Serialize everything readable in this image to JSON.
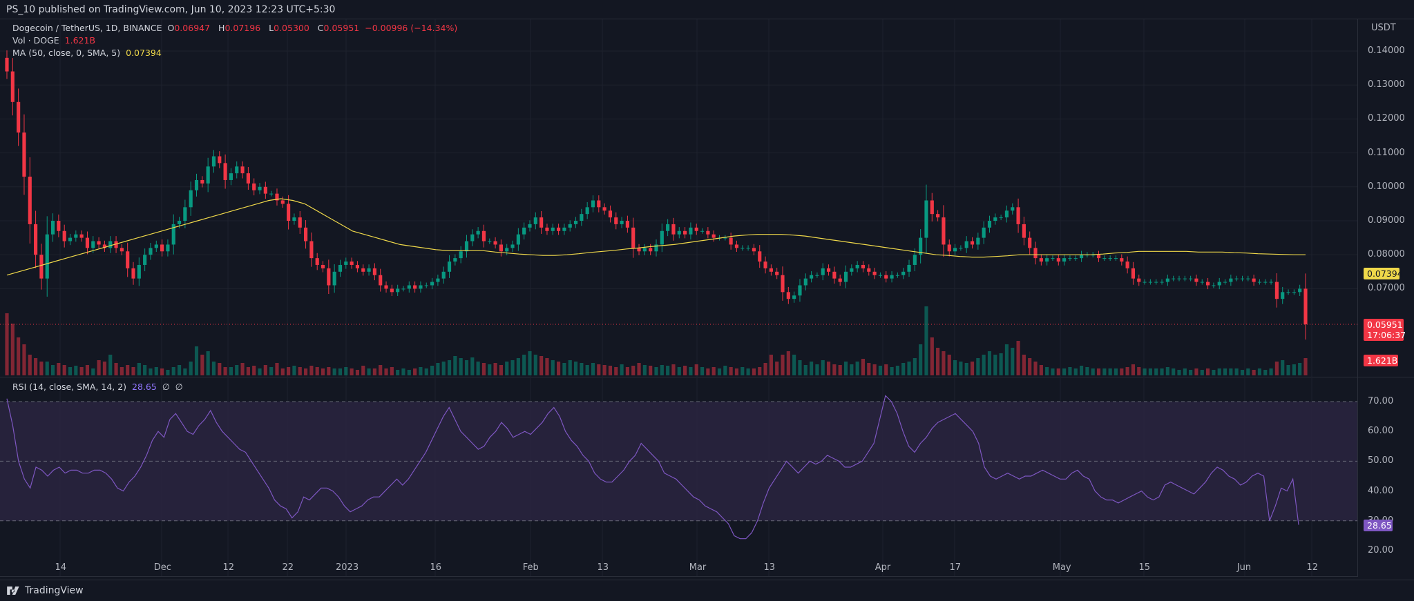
{
  "header": {
    "published": "PS_10 published on TradingView.com, Jun 10, 2023 12:23 UTC+5:30"
  },
  "footer": {
    "brand": "TradingView"
  },
  "main_legend": {
    "symbol": "Dogecoin / TetherUS, 1D, BINANCE",
    "o_label": "O",
    "o_value": "0.06947",
    "h_label": "H",
    "h_value": "0.07196",
    "l_label": "L",
    "l_value": "0.05300",
    "c_label": "C",
    "c_value": "0.05951",
    "change": "−0.00996 (−14.34%)",
    "vol_label": "Vol · DOGE",
    "vol_value": "1.621B",
    "ma_label": "MA (50, close, 0, SMA, 5)",
    "ma_value": "0.07394"
  },
  "rsi_legend": {
    "label": "RSI (14, close, SMA, 14, 2)",
    "value": "28.65",
    "extra1": "∅",
    "extra2": "∅"
  },
  "price_axis": {
    "currency": "USDT",
    "ticks": [
      "0.14000",
      "0.13000",
      "0.12000",
      "0.11000",
      "0.10000",
      "0.09000",
      "0.08000",
      "0.07000"
    ]
  },
  "rsi_axis": {
    "ticks": [
      "70.00",
      "60.00",
      "50.00",
      "40.00",
      "30.00",
      "20.00"
    ]
  },
  "tags": {
    "ma": "0.07394",
    "last_price": "0.05951",
    "countdown": "17:06:37",
    "volume": "1.621B",
    "rsi": "28.65"
  },
  "time_axis": {
    "labels": [
      "14",
      "Dec",
      "12",
      "22",
      "2023",
      "16",
      "Feb",
      "13",
      "Mar",
      "13",
      "Apr",
      "17",
      "May",
      "15",
      "Jun",
      "12"
    ]
  },
  "colors": {
    "background": "#131722",
    "up": "#089981",
    "down": "#f23645",
    "ma_line": "#f0d94a",
    "rsi_line": "#7e57c2",
    "rsi_band": "#2a2440",
    "grid": "#1e222d"
  },
  "chart_data": {
    "type": "candlestick",
    "symbol": "DOGE/USDT",
    "interval": "1D",
    "price_range": [
      0.056,
      0.142
    ],
    "rsi_range": [
      19,
      75
    ],
    "rsi_bands": {
      "upper": 70,
      "middle": 50,
      "lower": 30
    },
    "close": [
      0.134,
      0.125,
      0.116,
      0.103,
      0.089,
      0.08,
      0.073,
      0.086,
      0.09,
      0.087,
      0.084,
      0.085,
      0.086,
      0.085,
      0.082,
      0.084,
      0.083,
      0.082,
      0.084,
      0.082,
      0.081,
      0.076,
      0.073,
      0.077,
      0.08,
      0.082,
      0.083,
      0.081,
      0.083,
      0.089,
      0.09,
      0.094,
      0.099,
      0.102,
      0.101,
      0.106,
      0.109,
      0.107,
      0.102,
      0.104,
      0.106,
      0.104,
      0.101,
      0.099,
      0.1,
      0.098,
      0.098,
      0.096,
      0.095,
      0.09,
      0.091,
      0.088,
      0.084,
      0.079,
      0.077,
      0.076,
      0.071,
      0.075,
      0.077,
      0.078,
      0.077,
      0.076,
      0.075,
      0.076,
      0.074,
      0.071,
      0.07,
      0.069,
      0.07,
      0.07,
      0.071,
      0.07,
      0.071,
      0.071,
      0.072,
      0.073,
      0.075,
      0.078,
      0.079,
      0.081,
      0.084,
      0.086,
      0.087,
      0.084,
      0.084,
      0.083,
      0.081,
      0.082,
      0.083,
      0.086,
      0.088,
      0.089,
      0.091,
      0.088,
      0.087,
      0.088,
      0.087,
      0.088,
      0.089,
      0.09,
      0.092,
      0.094,
      0.096,
      0.094,
      0.093,
      0.091,
      0.089,
      0.09,
      0.088,
      0.082,
      0.081,
      0.082,
      0.081,
      0.083,
      0.087,
      0.089,
      0.086,
      0.087,
      0.086,
      0.088,
      0.087,
      0.087,
      0.086,
      0.085,
      0.085,
      0.085,
      0.083,
      0.082,
      0.082,
      0.082,
      0.081,
      0.078,
      0.076,
      0.075,
      0.074,
      0.069,
      0.067,
      0.068,
      0.071,
      0.073,
      0.074,
      0.074,
      0.076,
      0.075,
      0.073,
      0.072,
      0.075,
      0.076,
      0.077,
      0.076,
      0.075,
      0.074,
      0.074,
      0.073,
      0.074,
      0.074,
      0.075,
      0.077,
      0.08,
      0.085,
      0.096,
      0.092,
      0.091,
      0.083,
      0.081,
      0.082,
      0.082,
      0.084,
      0.083,
      0.085,
      0.088,
      0.09,
      0.091,
      0.091,
      0.093,
      0.094,
      0.089,
      0.085,
      0.082,
      0.079,
      0.078,
      0.079,
      0.079,
      0.078,
      0.079,
      0.079,
      0.079,
      0.08,
      0.08,
      0.08,
      0.079,
      0.079,
      0.079,
      0.079,
      0.078,
      0.076,
      0.073,
      0.072,
      0.072,
      0.072,
      0.072,
      0.072,
      0.073,
      0.073,
      0.073,
      0.073,
      0.073,
      0.072,
      0.072,
      0.071,
      0.071,
      0.072,
      0.072,
      0.073,
      0.073,
      0.073,
      0.073,
      0.072,
      0.072,
      0.072,
      0.072,
      0.067,
      0.069,
      0.069,
      0.069,
      0.07,
      0.0595
    ],
    "ma50": [
      0.074,
      0.075,
      0.076,
      0.077,
      0.078,
      0.079,
      0.08,
      0.081,
      0.082,
      0.083,
      0.084,
      0.085,
      0.086,
      0.087,
      0.088,
      0.089,
      0.09,
      0.091,
      0.092,
      0.093,
      0.094,
      0.095,
      0.096,
      0.0965,
      0.096,
      0.095,
      0.093,
      0.091,
      0.089,
      0.087,
      0.086,
      0.085,
      0.084,
      0.083,
      0.0825,
      0.082,
      0.0815,
      0.0812,
      0.0812,
      0.0812,
      0.0812,
      0.0808,
      0.0805,
      0.0802,
      0.08,
      0.0798,
      0.0798,
      0.08,
      0.0803,
      0.0807,
      0.081,
      0.0813,
      0.0817,
      0.082,
      0.0824,
      0.0827,
      0.083,
      0.0835,
      0.084,
      0.0845,
      0.085,
      0.0855,
      0.0858,
      0.086,
      0.086,
      0.086,
      0.0858,
      0.0855,
      0.085,
      0.0845,
      0.084,
      0.0835,
      0.083,
      0.0825,
      0.082,
      0.0815,
      0.081,
      0.0805,
      0.08,
      0.0798,
      0.0795,
      0.0793,
      0.0793,
      0.0795,
      0.0797,
      0.08,
      0.08,
      0.08,
      0.08,
      0.08,
      0.08,
      0.08,
      0.0802,
      0.0805,
      0.0807,
      0.081,
      0.081,
      0.081,
      0.081,
      0.081,
      0.0808,
      0.0808,
      0.0808,
      0.0806,
      0.0805,
      0.0803,
      0.0802,
      0.0801,
      0.08,
      0.08
    ],
    "volume_rel": [
      0.9,
      0.75,
      0.55,
      0.45,
      0.3,
      0.25,
      0.2,
      0.2,
      0.15,
      0.18,
      0.15,
      0.12,
      0.14,
      0.12,
      0.15,
      0.1,
      0.22,
      0.2,
      0.3,
      0.18,
      0.12,
      0.15,
      0.12,
      0.18,
      0.15,
      0.1,
      0.12,
      0.1,
      0.08,
      0.12,
      0.15,
      0.1,
      0.2,
      0.42,
      0.3,
      0.35,
      0.2,
      0.18,
      0.12,
      0.12,
      0.15,
      0.18,
      0.12,
      0.14,
      0.1,
      0.15,
      0.12,
      0.18,
      0.1,
      0.12,
      0.14,
      0.12,
      0.1,
      0.14,
      0.12,
      0.1,
      0.12,
      0.1,
      0.1,
      0.12,
      0.1,
      0.08,
      0.14,
      0.1,
      0.1,
      0.15,
      0.1,
      0.12,
      0.08,
      0.1,
      0.08,
      0.1,
      0.12,
      0.1,
      0.14,
      0.18,
      0.2,
      0.22,
      0.28,
      0.25,
      0.22,
      0.26,
      0.2,
      0.18,
      0.16,
      0.18,
      0.15,
      0.2,
      0.22,
      0.25,
      0.3,
      0.35,
      0.3,
      0.28,
      0.25,
      0.22,
      0.2,
      0.18,
      0.22,
      0.2,
      0.18,
      0.15,
      0.18,
      0.16,
      0.15,
      0.14,
      0.12,
      0.16,
      0.12,
      0.14,
      0.18,
      0.15,
      0.14,
      0.12,
      0.15,
      0.14,
      0.16,
      0.12,
      0.14,
      0.12,
      0.16,
      0.12,
      0.1,
      0.12,
      0.1,
      0.14,
      0.12,
      0.1,
      0.12,
      0.1,
      0.1,
      0.12,
      0.18,
      0.3,
      0.2,
      0.3,
      0.35,
      0.3,
      0.22,
      0.15,
      0.2,
      0.16,
      0.22,
      0.2,
      0.16,
      0.15,
      0.2,
      0.16,
      0.2,
      0.24,
      0.18,
      0.16,
      0.14,
      0.16,
      0.12,
      0.14,
      0.18,
      0.2,
      0.25,
      0.45,
      1.0,
      0.55,
      0.4,
      0.35,
      0.3,
      0.22,
      0.2,
      0.18,
      0.2,
      0.25,
      0.3,
      0.35,
      0.3,
      0.32,
      0.45,
      0.4,
      0.5,
      0.3,
      0.25,
      0.2,
      0.15,
      0.12,
      0.1,
      0.1,
      0.1,
      0.12,
      0.1,
      0.14,
      0.12,
      0.1,
      0.1,
      0.1,
      0.1,
      0.1,
      0.1,
      0.12,
      0.16,
      0.12,
      0.1,
      0.1,
      0.1,
      0.1,
      0.12,
      0.1,
      0.08,
      0.1,
      0.08,
      0.1,
      0.08,
      0.1,
      0.08,
      0.1,
      0.1,
      0.1,
      0.1,
      0.08,
      0.1,
      0.08,
      0.1,
      0.08,
      0.1,
      0.2,
      0.22,
      0.15,
      0.16,
      0.18,
      0.25
    ],
    "rsi": [
      71,
      62,
      50,
      44,
      41,
      48,
      47,
      45,
      47,
      48,
      46,
      47,
      47,
      46,
      46,
      47,
      47,
      46,
      44,
      41,
      40,
      43,
      45,
      48,
      52,
      57,
      60,
      58,
      64,
      66,
      63,
      60,
      59,
      62,
      64,
      67,
      63,
      60,
      58,
      56,
      54,
      53,
      50,
      47,
      44,
      41,
      37,
      35,
      34,
      31,
      33,
      38,
      37,
      39,
      41,
      41,
      40,
      38,
      35,
      33,
      34,
      35,
      37,
      38,
      38,
      40,
      42,
      44,
      42,
      44,
      47,
      50,
      53,
      57,
      61,
      65,
      68,
      64,
      60,
      58,
      56,
      54,
      55,
      58,
      60,
      63,
      61,
      58,
      59,
      60,
      59,
      61,
      63,
      66,
      68,
      65,
      60,
      57,
      55,
      52,
      50,
      46,
      44,
      43,
      43,
      45,
      47,
      50,
      52,
      56,
      54,
      52,
      50,
      46,
      45,
      44,
      42,
      40,
      38,
      37,
      35,
      34,
      33,
      31,
      29,
      25,
      24,
      24,
      26,
      30,
      36,
      41,
      44,
      47,
      50,
      48,
      46,
      48,
      50,
      49,
      50,
      52,
      51,
      50,
      48,
      48,
      49,
      50,
      53,
      56,
      64,
      72,
      70,
      66,
      60,
      55,
      53,
      56,
      58,
      61,
      63,
      64,
      65,
      66,
      64,
      62,
      60,
      56,
      48,
      45,
      44,
      45,
      46,
      45,
      44,
      45,
      45,
      46,
      47,
      46,
      45,
      44,
      44,
      46,
      47,
      45,
      44,
      40,
      38,
      37,
      37,
      36,
      37,
      38,
      39,
      40,
      38,
      37,
      38,
      42,
      43,
      42,
      41,
      40,
      39,
      41,
      43,
      46,
      48,
      47,
      45,
      44,
      42,
      43,
      45,
      46,
      45,
      30,
      35,
      41,
      40,
      44,
      28.65
    ]
  }
}
